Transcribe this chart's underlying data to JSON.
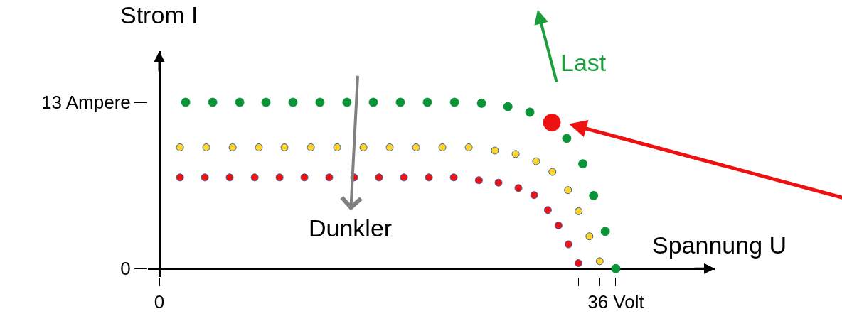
{
  "chart_data": {
    "type": "scatter",
    "xlabel": "Spannung U",
    "ylabel": "Strom I",
    "annotations": [
      "Last",
      "Dunkler"
    ],
    "xlim": [
      -0.9,
      43.8
    ],
    "ylim": [
      -0.65,
      17.0
    ],
    "xticks": [
      0,
      {
        "value": 33.05,
        "label": null
      },
      {
        "value": 34.73,
        "label": null
      },
      {
        "value": 36,
        "label": "36 Volt"
      }
    ],
    "yticks": [
      0,
      {
        "value": 13,
        "label": "13 Ampere"
      }
    ],
    "marker": "circle",
    "series": [
      {
        "color": "#0a9438",
        "x": [
          2.08,
          4.21,
          6.34,
          8.41,
          10.54,
          12.67,
          14.8,
          16.88,
          19.01,
          21.14,
          23.28,
          25.41,
          27.49,
          29.22,
          32.13,
          33.4,
          34.25,
          35.17,
          36
        ],
        "values": [
          13.0,
          13.0,
          13.0,
          13.0,
          13.0,
          13.0,
          13.0,
          13.0,
          13.0,
          13.0,
          13.0,
          12.93,
          12.66,
          12.23,
          10.18,
          8.19,
          5.71,
          2.91,
          0
        ]
      },
      {
        "color": "#ffd42a",
        "x": [
          1.63,
          3.7,
          5.78,
          7.85,
          9.87,
          11.95,
          14.02,
          16.1,
          18.17,
          20.25,
          22.32,
          24.4,
          26.46,
          28.1,
          29.72,
          31.0,
          32.23,
          33.07,
          33.92,
          34.73
        ],
        "values": [
          9.48,
          9.48,
          9.48,
          9.48,
          9.48,
          9.48,
          9.48,
          9.48,
          9.48,
          9.48,
          9.48,
          9.48,
          9.23,
          8.96,
          8.39,
          7.56,
          6.14,
          4.49,
          2.53,
          0.58
        ]
      },
      {
        "color": "#ee1111",
        "x": [
          1.63,
          3.59,
          5.55,
          7.52,
          9.48,
          11.44,
          13.4,
          15.37,
          17.33,
          19.29,
          21.26,
          23.22,
          25.2,
          26.75,
          28.32,
          29.56,
          30.64,
          31.48,
          32.27,
          33.05
        ],
        "values": [
          7.13,
          7.13,
          7.13,
          7.13,
          7.13,
          7.13,
          7.13,
          7.13,
          7.13,
          7.13,
          7.13,
          7.13,
          6.91,
          6.72,
          6.3,
          5.75,
          4.58,
          3.38,
          1.9,
          0.43
        ]
      },
      {
        "color": "#ee1111",
        "x": [
          30.96
        ],
        "values": [
          11.42
        ]
      }
    ]
  }
}
